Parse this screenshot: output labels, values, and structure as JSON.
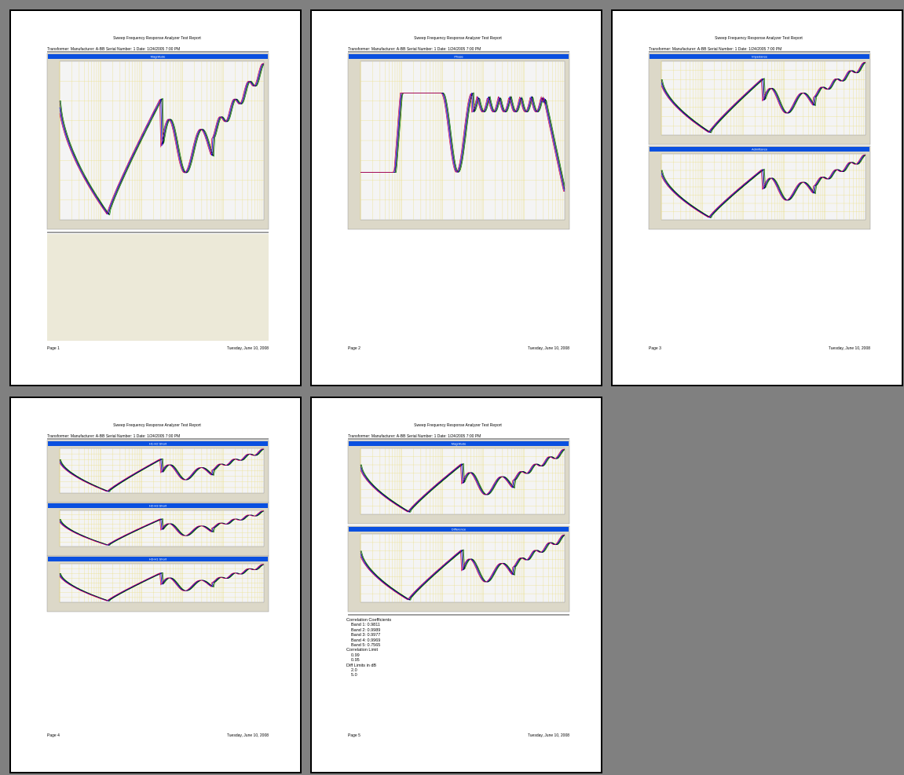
{
  "pages": [
    {
      "title": "Sweep Frequency Response Analyzer Test Report",
      "header": "Transformer: Manufacturer: A-BB Serial Number: 1 Date: 1/24/2005 7:00 PM",
      "panels": [
        "Magnitude"
      ],
      "footer_left": "Page 1",
      "footer_right": "Tuesday, June 10, 2008"
    },
    {
      "title": "Sweep Frequency Response Analyzer Test Report",
      "header": "Transformer: Manufacturer: A-BB Serial Number: 1 Date: 1/24/2005 7:00 PM",
      "panels": [
        "Phase"
      ],
      "footer_left": "Page 2",
      "footer_right": "Tuesday, June 10, 2008"
    },
    {
      "title": "Sweep Frequency Response Analyzer Test Report",
      "header": "Transformer: Manufacturer: A-BB Serial Number: 1 Date: 1/24/2005 7:00 PM",
      "panels": [
        "Impedance",
        "Admittance"
      ],
      "footer_left": "Page 3",
      "footer_right": "Tuesday, June 10, 2008"
    },
    {
      "title": "Sweep Frequency Response Analyzer Test Report",
      "header": "Transformer: Manufacturer: A-BB Serial Number: 1 Date: 1/24/2005 7:00 PM",
      "panels": [
        "H1-H2 Short",
        "H2-H3 Short",
        "H3-H1 Short"
      ],
      "footer_left": "Page 4",
      "footer_right": "Tuesday, June 10, 2008"
    },
    {
      "title": "Sweep Frequency Response Analyzer Test Report",
      "header": "Transformer: Manufacturer: A-BB Serial Number: 1 Date: 1/24/2005 7:00 PM",
      "panels": [
        "Magnitude",
        "Difference"
      ],
      "footer_left": "Page 5",
      "footer_right": "Tuesday, June 10, 2008",
      "notes": [
        "Correlation Coefficients",
        "Band 1: 0.9811",
        "Band 2: 0.9989",
        "Band 3: 0.9977",
        "Band 4: 0.9969",
        "Band 5: 0.7565",
        "Correlation Limit",
        "0.99",
        "0.95",
        "Diff Limits in dB",
        "2.0",
        "5.0"
      ]
    }
  ]
}
